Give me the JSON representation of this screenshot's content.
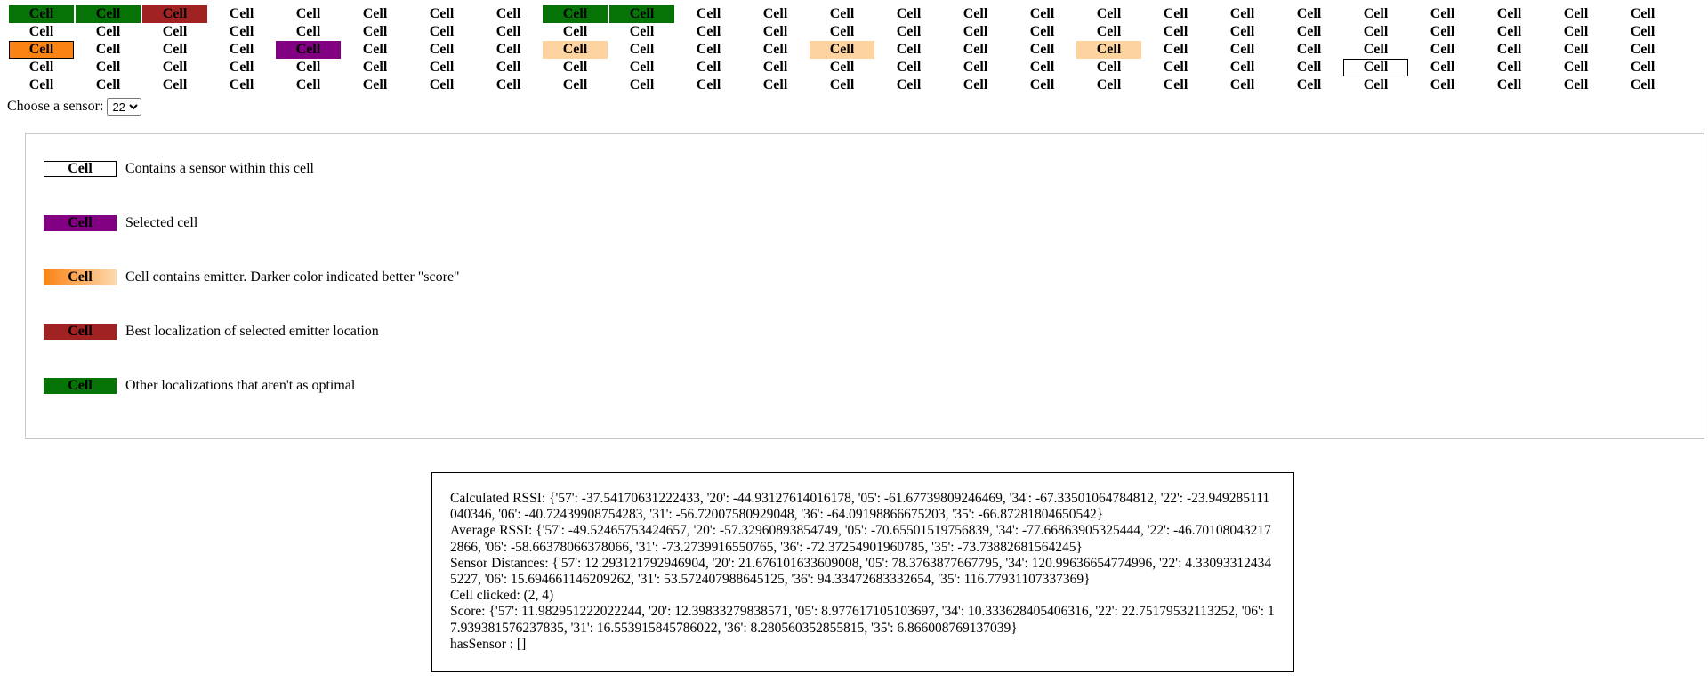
{
  "grid": {
    "cell_label": "Cell",
    "rows": [
      [
        "green",
        "green",
        "red",
        "",
        "",
        "",
        "",
        "",
        "green",
        "green",
        "",
        "",
        "",
        "",
        "",
        "",
        "",
        "",
        "",
        "",
        "",
        "",
        "",
        "",
        ""
      ],
      [
        "",
        "",
        "",
        "",
        "",
        "",
        "",
        "",
        "",
        "",
        "",
        "",
        "",
        "",
        "",
        "",
        "",
        "",
        "",
        "",
        "",
        "",
        "",
        "",
        ""
      ],
      [
        "orange",
        "",
        "",
        "",
        "purple",
        "",
        "",
        "",
        "peach",
        "",
        "",
        "",
        "peach",
        "",
        "",
        "",
        "peach",
        "",
        "",
        "",
        "",
        "",
        "",
        "",
        ""
      ],
      [
        "",
        "",
        "",
        "",
        "",
        "",
        "",
        "",
        "",
        "",
        "",
        "",
        "",
        "",
        "",
        "",
        "",
        "",
        "",
        "",
        "sensor",
        "",
        "",
        "",
        ""
      ],
      [
        "",
        "",
        "",
        "",
        "",
        "",
        "",
        "",
        "",
        "",
        "",
        "",
        "",
        "",
        "",
        "",
        "",
        "",
        "",
        "",
        "",
        "",
        "",
        "",
        ""
      ]
    ]
  },
  "sensor_select": {
    "label": "Choose a sensor:",
    "value": "22"
  },
  "legend": {
    "items": [
      {
        "style": "sensor",
        "label": "Cell",
        "text": "Contains a sensor within this cell"
      },
      {
        "style": "purple",
        "label": "Cell",
        "text": "Selected cell"
      },
      {
        "style": "gradient",
        "label": "Cell",
        "text": "Cell contains emitter. Darker color indicated better \"score\""
      },
      {
        "style": "red",
        "label": "Cell",
        "text": "Best localization of selected emitter location"
      },
      {
        "style": "green",
        "label": "Cell",
        "text": "Other localizations that aren't as optimal"
      }
    ]
  },
  "info": {
    "calculated_rssi": "Calculated RSSI: {'57': -37.54170631222433, '20': -44.93127614016178, '05': -61.67739809246469, '34': -67.33501064784812, '22': -23.949285111040346, '06': -40.72439908754283, '31': -56.72007580929048, '36': -64.09198866675203, '35': -66.87281804650542}",
    "average_rssi": "Average RSSI: {'57': -49.52465753424657, '20': -57.32960893854749, '05': -70.65501519756839, '34': -77.66863905325444, '22': -46.701080432172866, '06': -58.66378066378066, '31': -73.2739916550765, '36': -72.37254901960785, '35': -73.73882681564245}",
    "sensor_distances": "Sensor Distances: {'57': 12.293121792946904, '20': 21.676101633609008, '05': 78.3763877667795, '34': 120.99636654774996, '22': 4.330933124345227, '06': 15.694661146209262, '31': 53.572407988645125, '36': 94.33472683332654, '35': 116.77931107337369}",
    "cell_clicked": "Cell clicked: (2, 4)",
    "score": "Score: {'57': 11.982951222022244, '20': 12.39833279838571, '05': 8.977617105103697, '34': 10.333628405406316, '22': 22.75179532113252, '06': 17.939381576237835, '31': 16.553915845786022, '36': 8.280560352855815, '35': 6.866008769137039}",
    "has_sensor": "hasSensor : []"
  }
}
